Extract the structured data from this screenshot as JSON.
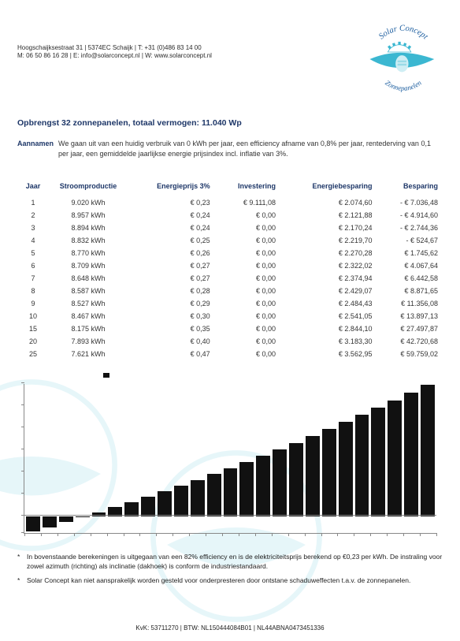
{
  "contact": {
    "line1": "Hoogschaijksestraat 31 | 5374EC Schaijk | T: +31 (0)486 83 14 00",
    "line2": "M: 06 50 86 16 28 | E: info@solarconcept.nl | W: www.solarconcept.nl"
  },
  "logo": {
    "brand_top": "Solar Concept",
    "brand_bottom": "Zonnepanelen",
    "accent_color": "#3bb7d1",
    "text_color": "#1e5fa0"
  },
  "title": "Opbrengst 32 zonnepanelen, totaal vermogen: 11.040 Wp",
  "assumptions": {
    "label": "Aannamen",
    "text": "We gaan uit van een huidig verbruik van 0 kWh per jaar, een efficiency afname van 0,8% per jaar, rentederving van 0,1 per jaar, een gemiddelde jaarlijkse energie prijsindex incl. inflatie van 3%."
  },
  "table": {
    "columns": [
      "Jaar",
      "Stroomproductie",
      "Energieprijs 3%",
      "Investering",
      "Energiebesparing",
      "Besparing"
    ],
    "rows": [
      [
        "1",
        "9.020 kWh",
        "€ 0,23",
        "€ 9.111,08",
        "€ 2.074,60",
        "- € 7.036,48"
      ],
      [
        "2",
        "8.957 kWh",
        "€ 0,24",
        "€ 0,00",
        "€ 2.121,88",
        "- € 4.914,60"
      ],
      [
        "3",
        "8.894 kWh",
        "€ 0,24",
        "€ 0,00",
        "€ 2.170,24",
        "- € 2.744,36"
      ],
      [
        "4",
        "8.832 kWh",
        "€ 0,25",
        "€ 0,00",
        "€ 2.219,70",
        "- € 524,67"
      ],
      [
        "5",
        "8.770 kWh",
        "€ 0,26",
        "€ 0,00",
        "€ 2.270,28",
        "€ 1.745,62"
      ],
      [
        "6",
        "8.709 kWh",
        "€ 0,27",
        "€ 0,00",
        "€ 2.322,02",
        "€ 4.067,64"
      ],
      [
        "7",
        "8.648 kWh",
        "€ 0,27",
        "€ 0,00",
        "€ 2.374,94",
        "€ 6.442,58"
      ],
      [
        "8",
        "8.587 kWh",
        "€ 0,28",
        "€ 0,00",
        "€ 2.429,07",
        "€ 8.871,65"
      ],
      [
        "9",
        "8.527 kWh",
        "€ 0,29",
        "€ 0,00",
        "€ 2.484,43",
        "€ 11.356,08"
      ],
      [
        "10",
        "8.467 kWh",
        "€ 0,30",
        "€ 0,00",
        "€ 2.541,05",
        "€ 13.897,13"
      ],
      [
        "15",
        "8.175 kWh",
        "€ 0,35",
        "€ 0,00",
        "€ 2.844,10",
        "€ 27.497,87"
      ],
      [
        "20",
        "7.893 kWh",
        "€ 0,40",
        "€ 0,00",
        "€ 3.183,30",
        "€ 42.720,68"
      ],
      [
        "25",
        "7.621 kWh",
        "€ 0,47",
        "€ 0,00",
        "€ 3.562,95",
        "€ 59.759,02"
      ]
    ]
  },
  "chart": {
    "type": "bar",
    "legend_label": "",
    "bar_color": "#111111",
    "axis_color": "#888888",
    "background_color": "#ffffff",
    "values": [
      -7036,
      -4915,
      -2744,
      -525,
      1746,
      4068,
      6443,
      8872,
      11356,
      13897,
      16497,
      19158,
      21880,
      24665,
      27498,
      30412,
      33393,
      36444,
      39546,
      42721,
      45966,
      49263,
      52630,
      56068,
      59759
    ],
    "ymin": -8000,
    "ymax": 60000,
    "ytick_step": 10000
  },
  "notes": {
    "items": [
      "In bovenstaande berekeningen is uitgegaan van een 82% efficiency en is de elektriciteitsprijs berekend op €0,23 per kWh. De instraling voor zowel azimuth (richting) als inclinatie (dakhoek) is conform de industriestandaard.",
      "Solar Concept kan niet aansprakelijk worden gesteld voor onderpresteren door ontstane schaduweffecten t.a.v. de zonnepanelen."
    ]
  },
  "footer": "KvK: 53711270 | BTW: NL150444084B01 | NL44ABNA0473451336"
}
